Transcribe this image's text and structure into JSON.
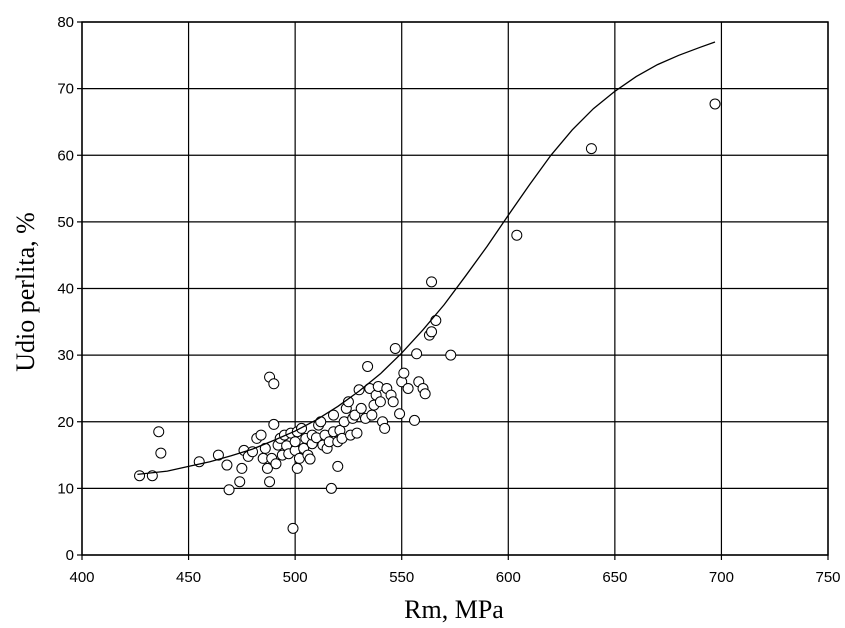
{
  "chart_data": {
    "type": "scatter",
    "xlabel": "Rm, MPa",
    "ylabel": "Udio perlita, %",
    "xlim": [
      400,
      750
    ],
    "ylim": [
      0,
      80
    ],
    "x_ticks": [
      400,
      450,
      500,
      550,
      600,
      650,
      700,
      750
    ],
    "y_ticks": [
      0,
      10,
      20,
      30,
      40,
      50,
      60,
      70,
      80
    ],
    "grid": true,
    "legend": "none",
    "colors": {
      "axis": "#000000",
      "grid": "#000000",
      "marker_edge": "#000000",
      "marker_fill": "#ffffff",
      "curve": "#000000"
    },
    "series": [
      {
        "type": "scatter",
        "points": [
          [
            427,
            11.9
          ],
          [
            433,
            11.9
          ],
          [
            436,
            18.5
          ],
          [
            437,
            15.3
          ],
          [
            455,
            14.0
          ],
          [
            464,
            15.0
          ],
          [
            468,
            13.5
          ],
          [
            469,
            9.8
          ],
          [
            474,
            11.0
          ],
          [
            475,
            13.0
          ],
          [
            476,
            15.7
          ],
          [
            478,
            14.8
          ],
          [
            480,
            15.5
          ],
          [
            482,
            17.5
          ],
          [
            484,
            18.0
          ],
          [
            485,
            14.5
          ],
          [
            486,
            16.0
          ],
          [
            487,
            13.0
          ],
          [
            488,
            26.7
          ],
          [
            488,
            11.0
          ],
          [
            489,
            14.5
          ],
          [
            490,
            25.7
          ],
          [
            490,
            19.6
          ],
          [
            491,
            13.7
          ],
          [
            492,
            16.5
          ],
          [
            493,
            17.5
          ],
          [
            494,
            15.0
          ],
          [
            495,
            18.0
          ],
          [
            496,
            16.4
          ],
          [
            497,
            15.2
          ],
          [
            498,
            18.3
          ],
          [
            499,
            4.0
          ],
          [
            500,
            15.7
          ],
          [
            500,
            17.0
          ],
          [
            501,
            13.0
          ],
          [
            501,
            18.5
          ],
          [
            502,
            14.5
          ],
          [
            503,
            19.0
          ],
          [
            504,
            16.0
          ],
          [
            505,
            17.5
          ],
          [
            506,
            15.0
          ],
          [
            507,
            14.4
          ],
          [
            508,
            16.7
          ],
          [
            508,
            18.0
          ],
          [
            510,
            17.6
          ],
          [
            511,
            19.5
          ],
          [
            512,
            20.0
          ],
          [
            513,
            16.5
          ],
          [
            514,
            18.0
          ],
          [
            515,
            16.0
          ],
          [
            516,
            17.0
          ],
          [
            517,
            10.0
          ],
          [
            518,
            18.5
          ],
          [
            518,
            21.0
          ],
          [
            520,
            13.3
          ],
          [
            520,
            17.0
          ],
          [
            521,
            18.7
          ],
          [
            522,
            17.5
          ],
          [
            523,
            20.0
          ],
          [
            524,
            22.0
          ],
          [
            525,
            23.0
          ],
          [
            526,
            18.0
          ],
          [
            527,
            20.5
          ],
          [
            528,
            21.0
          ],
          [
            529,
            18.3
          ],
          [
            530,
            24.8
          ],
          [
            531,
            22.0
          ],
          [
            533,
            20.5
          ],
          [
            534,
            28.3
          ],
          [
            535,
            25.0
          ],
          [
            536,
            21.0
          ],
          [
            537,
            22.5
          ],
          [
            538,
            24.0
          ],
          [
            539,
            25.3
          ],
          [
            540,
            23.0
          ],
          [
            541,
            20.0
          ],
          [
            542,
            19.0
          ],
          [
            543,
            25.0
          ],
          [
            545,
            24.0
          ],
          [
            546,
            23.0
          ],
          [
            547,
            31.0
          ],
          [
            549,
            21.2
          ],
          [
            550,
            26.0
          ],
          [
            551,
            27.3
          ],
          [
            553,
            25.0
          ],
          [
            556,
            20.2
          ],
          [
            557,
            30.2
          ],
          [
            558,
            26.0
          ],
          [
            560,
            25.0
          ],
          [
            561,
            24.2
          ],
          [
            563,
            33.0
          ],
          [
            564,
            41.0
          ],
          [
            564,
            33.5
          ],
          [
            566,
            35.2
          ],
          [
            573,
            30.0
          ],
          [
            604,
            48.0
          ],
          [
            639,
            61.0
          ],
          [
            697,
            67.7
          ]
        ]
      },
      {
        "type": "line",
        "points": [
          [
            426,
            12.1
          ],
          [
            440,
            12.6
          ],
          [
            450,
            13.3
          ],
          [
            460,
            14.0
          ],
          [
            470,
            14.9
          ],
          [
            480,
            15.9
          ],
          [
            490,
            17.2
          ],
          [
            500,
            18.6
          ],
          [
            510,
            20.3
          ],
          [
            520,
            22.3
          ],
          [
            530,
            24.6
          ],
          [
            540,
            27.2
          ],
          [
            550,
            30.3
          ],
          [
            560,
            33.8
          ],
          [
            570,
            37.6
          ],
          [
            580,
            41.9
          ],
          [
            590,
            46.3
          ],
          [
            600,
            51.0
          ],
          [
            610,
            55.6
          ],
          [
            620,
            60.0
          ],
          [
            630,
            63.8
          ],
          [
            640,
            67.0
          ],
          [
            650,
            69.6
          ],
          [
            660,
            71.8
          ],
          [
            670,
            73.6
          ],
          [
            680,
            75.0
          ],
          [
            690,
            76.2
          ],
          [
            697,
            77.0
          ]
        ]
      }
    ]
  }
}
